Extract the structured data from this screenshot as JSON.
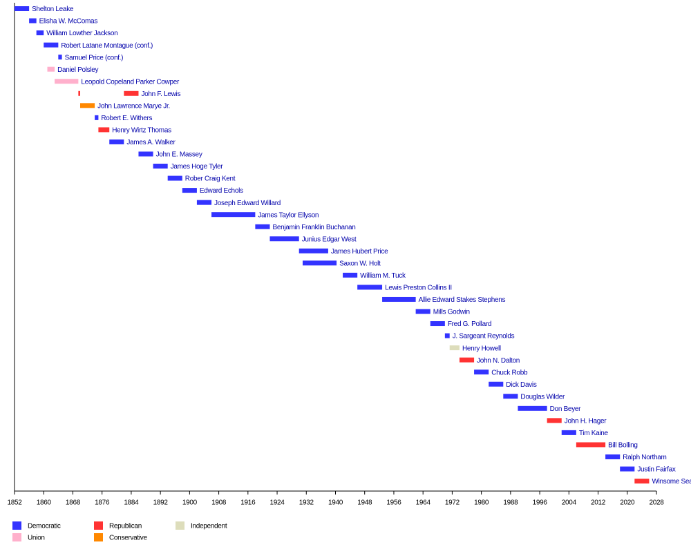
{
  "chart_data": {
    "type": "timeline",
    "xlim": [
      1852,
      2028
    ],
    "xticks": [
      1852,
      1860,
      1868,
      1876,
      1884,
      1892,
      1900,
      1908,
      1916,
      1924,
      1932,
      1940,
      1948,
      1956,
      1964,
      1972,
      1980,
      1988,
      1996,
      2004,
      2012,
      2020,
      2028
    ],
    "parties": [
      {
        "name": "Democratic",
        "color": "#3333ff"
      },
      {
        "name": "Union",
        "color": "#ffb0cc"
      },
      {
        "name": "Republican",
        "color": "#ff3333"
      },
      {
        "name": "Conservative",
        "color": "#ff8800"
      },
      {
        "name": "Independent",
        "color": "#ddddbb"
      }
    ],
    "rows": [
      {
        "name": "Shelton Leake",
        "terms": [
          {
            "start": 1852,
            "end": 1856,
            "party": "Democratic"
          }
        ]
      },
      {
        "name": "Elisha W. McComas",
        "terms": [
          {
            "start": 1856,
            "end": 1858,
            "party": "Democratic"
          }
        ]
      },
      {
        "name": "William Lowther Jackson",
        "terms": [
          {
            "start": 1858,
            "end": 1860,
            "party": "Democratic"
          }
        ]
      },
      {
        "name": "Robert Latane Montague (conf.)",
        "terms": [
          {
            "start": 1860,
            "end": 1864,
            "party": "Democratic"
          }
        ]
      },
      {
        "name": "Samuel Price (conf.)",
        "terms": [
          {
            "start": 1864,
            "end": 1865,
            "party": "Democratic"
          }
        ]
      },
      {
        "name": "Daniel Polsley",
        "terms": [
          {
            "start": 1861,
            "end": 1863,
            "party": "Union"
          }
        ]
      },
      {
        "name": "Leopold Copeland Parker Cowper",
        "terms": [
          {
            "start": 1863,
            "end": 1869.5,
            "party": "Union"
          }
        ]
      },
      {
        "name": "John F. Lewis",
        "terms": [
          {
            "start": 1869.5,
            "end": 1870,
            "party": "Republican"
          },
          {
            "start": 1882,
            "end": 1886,
            "party": "Republican"
          }
        ]
      },
      {
        "name": "John Lawrence Marye Jr.",
        "terms": [
          {
            "start": 1870,
            "end": 1874,
            "party": "Conservative"
          }
        ]
      },
      {
        "name": "Robert E. Withers",
        "terms": [
          {
            "start": 1874,
            "end": 1875,
            "party": "Democratic"
          }
        ]
      },
      {
        "name": "Henry Wirtz Thomas",
        "terms": [
          {
            "start": 1875,
            "end": 1878,
            "party": "Republican"
          }
        ]
      },
      {
        "name": "James A. Walker",
        "terms": [
          {
            "start": 1878,
            "end": 1882,
            "party": "Democratic"
          }
        ]
      },
      {
        "name": "John E. Massey",
        "terms": [
          {
            "start": 1886,
            "end": 1890,
            "party": "Democratic"
          }
        ]
      },
      {
        "name": "James Hoge Tyler",
        "terms": [
          {
            "start": 1890,
            "end": 1894,
            "party": "Democratic"
          }
        ]
      },
      {
        "name": "Rober Craig Kent",
        "terms": [
          {
            "start": 1894,
            "end": 1898,
            "party": "Democratic"
          }
        ]
      },
      {
        "name": "Edward Echols",
        "terms": [
          {
            "start": 1898,
            "end": 1902,
            "party": "Democratic"
          }
        ]
      },
      {
        "name": "Joseph Edward Willard",
        "terms": [
          {
            "start": 1902,
            "end": 1906,
            "party": "Democratic"
          }
        ]
      },
      {
        "name": "James Taylor Ellyson",
        "terms": [
          {
            "start": 1906,
            "end": 1918,
            "party": "Democratic"
          }
        ]
      },
      {
        "name": "Benjamin Franklin Buchanan",
        "terms": [
          {
            "start": 1918,
            "end": 1922,
            "party": "Democratic"
          }
        ]
      },
      {
        "name": "Junius Edgar West",
        "terms": [
          {
            "start": 1922,
            "end": 1930,
            "party": "Democratic"
          }
        ]
      },
      {
        "name": "James Hubert Price",
        "terms": [
          {
            "start": 1930,
            "end": 1938,
            "party": "Democratic"
          }
        ]
      },
      {
        "name": "Saxon W. Holt",
        "terms": [
          {
            "start": 1931,
            "end": 1940.3,
            "party": "Democratic"
          }
        ]
      },
      {
        "name": "William M. Tuck",
        "terms": [
          {
            "start": 1942,
            "end": 1946,
            "party": "Democratic"
          }
        ]
      },
      {
        "name": "Lewis Preston Collins II",
        "terms": [
          {
            "start": 1946,
            "end": 1952.8,
            "party": "Democratic"
          }
        ]
      },
      {
        "name": "Allie Edward Stakes Stephens",
        "terms": [
          {
            "start": 1952.8,
            "end": 1962,
            "party": "Democratic"
          }
        ]
      },
      {
        "name": "Mills Godwin",
        "terms": [
          {
            "start": 1962,
            "end": 1966,
            "party": "Democratic"
          }
        ]
      },
      {
        "name": "Fred G. Pollard",
        "terms": [
          {
            "start": 1966,
            "end": 1970,
            "party": "Democratic"
          }
        ]
      },
      {
        "name": "J. Sargeant Reynolds",
        "terms": [
          {
            "start": 1970,
            "end": 1971.3,
            "party": "Democratic"
          }
        ]
      },
      {
        "name": "Henry Howell",
        "terms": [
          {
            "start": 1971.3,
            "end": 1974,
            "party": "Independent"
          }
        ]
      },
      {
        "name": "John N. Dalton",
        "terms": [
          {
            "start": 1974,
            "end": 1978,
            "party": "Republican"
          }
        ]
      },
      {
        "name": "Chuck Robb",
        "terms": [
          {
            "start": 1978,
            "end": 1982,
            "party": "Democratic"
          }
        ]
      },
      {
        "name": "Dick Davis",
        "terms": [
          {
            "start": 1982,
            "end": 1986,
            "party": "Democratic"
          }
        ]
      },
      {
        "name": "Douglas Wilder",
        "terms": [
          {
            "start": 1986,
            "end": 1990,
            "party": "Democratic"
          }
        ]
      },
      {
        "name": "Don Beyer",
        "terms": [
          {
            "start": 1990,
            "end": 1998,
            "party": "Democratic"
          }
        ]
      },
      {
        "name": "John H. Hager",
        "terms": [
          {
            "start": 1998,
            "end": 2002,
            "party": "Republican"
          }
        ]
      },
      {
        "name": "Tim Kaine",
        "terms": [
          {
            "start": 2002,
            "end": 2006,
            "party": "Democratic"
          }
        ]
      },
      {
        "name": "Bill Bolling",
        "terms": [
          {
            "start": 2006,
            "end": 2014,
            "party": "Republican"
          }
        ]
      },
      {
        "name": "Ralph Northam",
        "terms": [
          {
            "start": 2014,
            "end": 2018,
            "party": "Democratic"
          }
        ]
      },
      {
        "name": "Justin Fairfax",
        "terms": [
          {
            "start": 2018,
            "end": 2022,
            "party": "Democratic"
          }
        ]
      },
      {
        "name": "Winsome Sears",
        "terms": [
          {
            "start": 2022,
            "end": 2026,
            "party": "Republican"
          }
        ]
      }
    ]
  }
}
